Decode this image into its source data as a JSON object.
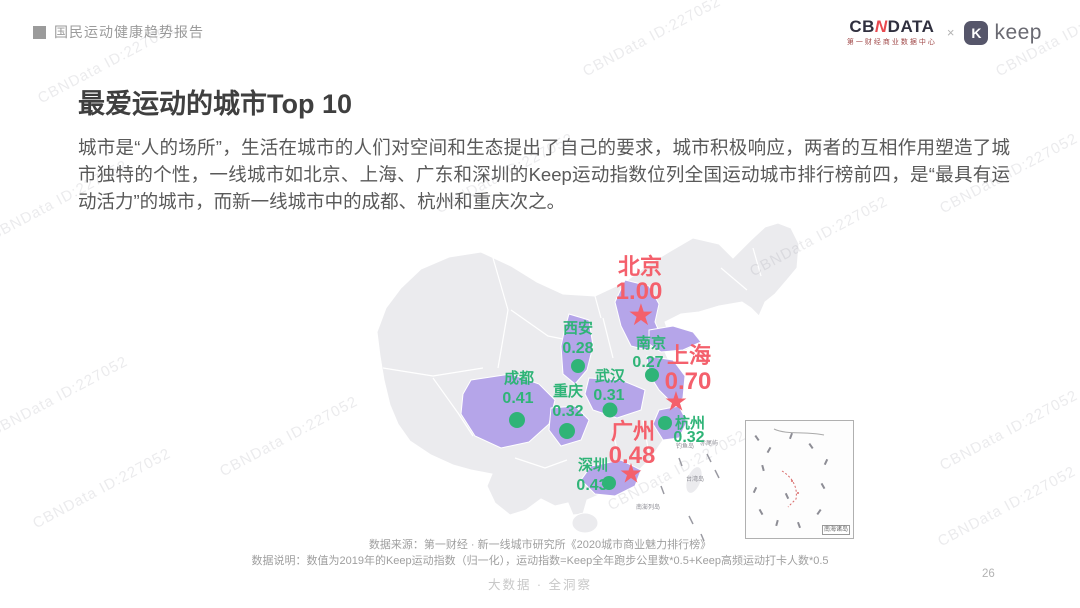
{
  "watermark": "CBNData ID:227052",
  "header": {
    "tag": "国民运动健康趋势报告"
  },
  "brand": {
    "cbndata_left": "CB",
    "cbndata_mid": "N",
    "cbndata_right": "DATA",
    "cbndata_sub": "第一财经商业数据中心",
    "cross": "×",
    "keep_k": "K",
    "keep": "keep"
  },
  "title": "最爱运动的城市Top 10",
  "intro": "城市是“人的场所”，生活在城市的人们对空间和生态提出了自己的要求，城市积极响应，两者的互相作用塑造了城市独特的个性，一线城市如北京、上海、广东和深圳的Keep运动指数位列全国运动城市排行榜前四，是“最具有运动活力”的城市，而新一线城市中的成都、杭州和重庆次之。",
  "map": {
    "islands": {
      "diaoyu": "钓鱼岛",
      "chiwei": "赤尾屿",
      "taiwan": "台湾岛",
      "nanpeng": "南澎列岛",
      "inset": "南海诸岛"
    }
  },
  "chart_data": {
    "type": "scatter",
    "subtype": "china-city-map",
    "title": "最爱运动的城市Top 10",
    "value_definition": "2019年的Keep运动指数（归一化），运动指数=Keep全年跑步公里数*0.5+Keep高频运动打卡人数*0.5",
    "colors": {
      "tier1": "#f4606c",
      "other": "#2fb477",
      "province_highlight": "#b5a5e9",
      "land": "#ebebee"
    },
    "cities": [
      {
        "name": "北京",
        "value": "1.00",
        "marker": "star",
        "tier": "tier1"
      },
      {
        "name": "上海",
        "value": "0.70",
        "marker": "star",
        "tier": "tier1"
      },
      {
        "name": "广州",
        "value": "0.48",
        "marker": "star",
        "tier": "tier1"
      },
      {
        "name": "深圳",
        "value": "0.43",
        "marker": "dot",
        "tier": "other"
      },
      {
        "name": "成都",
        "value": "0.41",
        "marker": "dot",
        "tier": "other"
      },
      {
        "name": "重庆",
        "value": "0.32",
        "marker": "dot",
        "tier": "other"
      },
      {
        "name": "杭州",
        "value": "0.32",
        "marker": "dot",
        "tier": "other"
      },
      {
        "name": "武汉",
        "value": "0.31",
        "marker": "dot",
        "tier": "other"
      },
      {
        "name": "西安",
        "value": "0.28",
        "marker": "dot",
        "tier": "other"
      },
      {
        "name": "南京",
        "value": "0.27",
        "marker": "dot",
        "tier": "other"
      }
    ]
  },
  "footer": {
    "source": "数据来源：第一财经 · 新一线城市研究所《2020城市商业魅力排行榜》",
    "note": "数据说明：数值为2019年的Keep运动指数（归一化），运动指数=Keep全年跑步公里数*0.5+Keep高频运动打卡人数*0.5",
    "slogan": "大数据 · 全洞察",
    "page": "26"
  }
}
